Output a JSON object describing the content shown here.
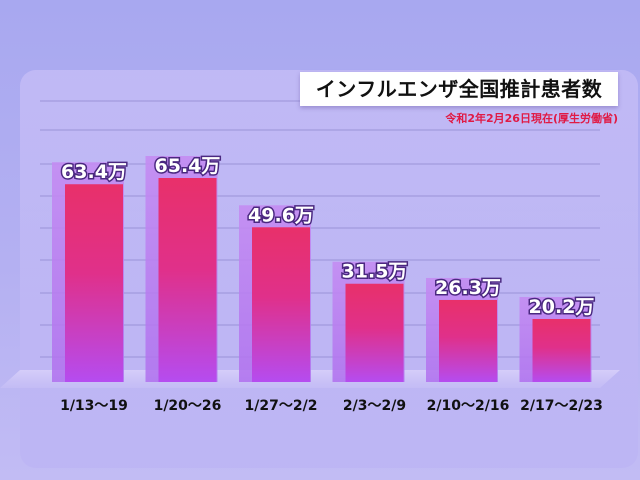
{
  "chart_data": {
    "type": "bar",
    "title": "インフルエンザ全国推計患者数",
    "subtitle": "令和2年2月26日現在(厚生労働省)",
    "unit": "万",
    "categories": [
      "1/13〜19",
      "1/20〜26",
      "1/27〜2/2",
      "2/3〜2/9",
      "2/10〜2/16",
      "2/17〜2/23"
    ],
    "values": [
      63.4,
      65.4,
      49.6,
      31.5,
      26.3,
      20.2
    ],
    "value_labels": [
      "63.4万",
      "65.4万",
      "49.6万",
      "31.5万",
      "26.3万",
      "20.2万"
    ],
    "xlabel": "",
    "ylabel": "",
    "ylim": [
      0,
      65.4
    ],
    "grid": true,
    "legend": "none",
    "colors": {
      "bar_top": "#e8306a",
      "bar_bottom": "#b54cf0",
      "shadow_bar": "#c08af0",
      "label_outline": "#4a2880"
    }
  }
}
